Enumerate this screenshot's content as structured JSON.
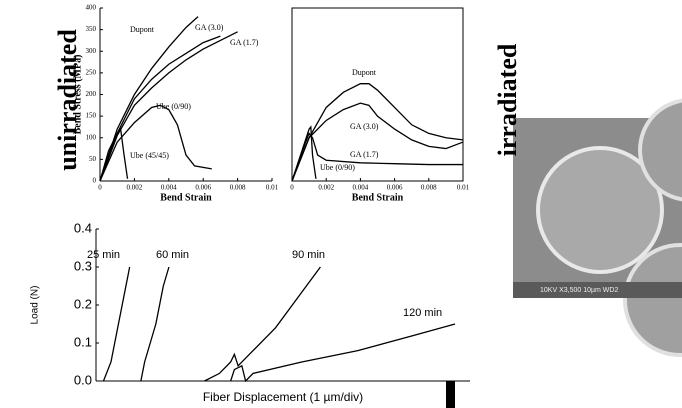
{
  "chart_data": [
    {
      "type": "line",
      "side_label": "unirradiated",
      "x_label": "Bend Strain",
      "y_label": "Bend Stress (MPa)",
      "xlim": [
        0,
        0.01
      ],
      "xticks": [
        0,
        0.002,
        0.004,
        0.006,
        0.008,
        0.01
      ],
      "ylim": [
        0,
        400
      ],
      "yticks": [
        0,
        50,
        100,
        150,
        200,
        250,
        300,
        350,
        400
      ],
      "series": [
        {
          "name": "Dupont",
          "color": "#000000",
          "x": [
            0,
            0.001,
            0.002,
            0.003,
            0.004,
            0.005,
            0.0057
          ],
          "values": [
            0,
            120,
            200,
            260,
            310,
            355,
            380
          ]
        },
        {
          "name": "GA (3.0)",
          "color": "#000000",
          "x": [
            0,
            0.001,
            0.002,
            0.003,
            0.004,
            0.005,
            0.006,
            0.007
          ],
          "values": [
            0,
            110,
            190,
            235,
            270,
            295,
            320,
            335
          ]
        },
        {
          "name": "GA (1.7)",
          "color": "#000000",
          "x": [
            0,
            0.001,
            0.002,
            0.003,
            0.004,
            0.005,
            0.006,
            0.007,
            0.008
          ],
          "values": [
            0,
            105,
            175,
            215,
            250,
            280,
            305,
            325,
            345
          ]
        },
        {
          "name": "Ube (0/90)",
          "color": "#000000",
          "x": [
            0,
            0.001,
            0.002,
            0.003,
            0.0035,
            0.004,
            0.0045,
            0.005,
            0.0055,
            0.0065
          ],
          "values": [
            0,
            90,
            135,
            170,
            175,
            165,
            130,
            60,
            35,
            28
          ]
        },
        {
          "name": "Ube (45/45)",
          "color": "#000000",
          "x": [
            0,
            0.0005,
            0.001,
            0.0012,
            0.0014,
            0.0016
          ],
          "values": [
            0,
            70,
            110,
            120,
            60,
            5
          ]
        }
      ]
    },
    {
      "type": "line",
      "side_label": "irradiated",
      "x_label": "Bend Strain",
      "xlim": [
        0,
        0.01
      ],
      "xticks": [
        0,
        0.002,
        0.004,
        0.006,
        0.008,
        0.01
      ],
      "ylim": [
        0,
        400
      ],
      "series": [
        {
          "name": "Dupont",
          "color": "#000000",
          "x": [
            0,
            0.001,
            0.002,
            0.003,
            0.004,
            0.0045,
            0.005,
            0.006,
            0.007,
            0.008,
            0.009,
            0.01
          ],
          "values": [
            0,
            100,
            170,
            205,
            225,
            225,
            210,
            170,
            130,
            110,
            100,
            95
          ]
        },
        {
          "name": "GA (3.0)",
          "color": "#000000",
          "x": [
            0,
            0.001,
            0.002,
            0.003,
            0.004,
            0.0045,
            0.005,
            0.006,
            0.007,
            0.008,
            0.009,
            0.01
          ],
          "values": [
            0,
            100,
            140,
            165,
            180,
            175,
            150,
            120,
            95,
            80,
            75,
            90
          ]
        },
        {
          "name": "GA (1.7)",
          "color": "#000000",
          "x": [
            0,
            0.0008,
            0.001,
            0.0012,
            0.0015,
            0.002,
            0.004,
            0.006,
            0.008,
            0.01
          ],
          "values": [
            0,
            90,
            110,
            100,
            60,
            48,
            42,
            40,
            38,
            38
          ]
        },
        {
          "name": "Ube (0/90)",
          "color": "#000000",
          "x": [
            0,
            0.0005,
            0.001,
            0.0011,
            0.0012,
            0.0014
          ],
          "values": [
            0,
            60,
            120,
            125,
            60,
            5
          ]
        }
      ]
    },
    {
      "type": "line",
      "x_label": "Fiber Displacement (1 µm/div)",
      "y_label": "Load (N)",
      "xlim": [
        0,
        100
      ],
      "ylim": [
        0,
        0.4
      ],
      "yticks": [
        {
          "value": 0,
          "label": "0.0"
        },
        0.1,
        0.2,
        0.3,
        0.4
      ],
      "series": [
        {
          "name": "25 min",
          "color": "#000000",
          "x": [
            2,
            4,
            5,
            6,
            7,
            8,
            9
          ],
          "values": [
            0,
            0.05,
            0.1,
            0.15,
            0.2,
            0.25,
            0.3
          ]
        },
        {
          "name": "60 min",
          "color": "#000000",
          "x": [
            12,
            13,
            14.5,
            16,
            17,
            18,
            19.5
          ],
          "values": [
            0,
            0.05,
            0.1,
            0.15,
            0.2,
            0.25,
            0.3
          ]
        },
        {
          "name": "90 min",
          "color": "#000000",
          "x": [
            29,
            33,
            36,
            37,
            38,
            42,
            48,
            54,
            60
          ],
          "values": [
            0,
            0.02,
            0.05,
            0.07,
            0.04,
            0.08,
            0.14,
            0.22,
            0.3
          ]
        },
        {
          "name": "120 min",
          "color": "#000000",
          "x": [
            36,
            37,
            39,
            40,
            42,
            55,
            70,
            85,
            96
          ],
          "values": [
            0,
            0.03,
            0.04,
            0,
            0.02,
            0.05,
            0.08,
            0.12,
            0.15
          ]
        }
      ]
    }
  ],
  "image_caption": "10KV  X3,500  10µm  WD2"
}
